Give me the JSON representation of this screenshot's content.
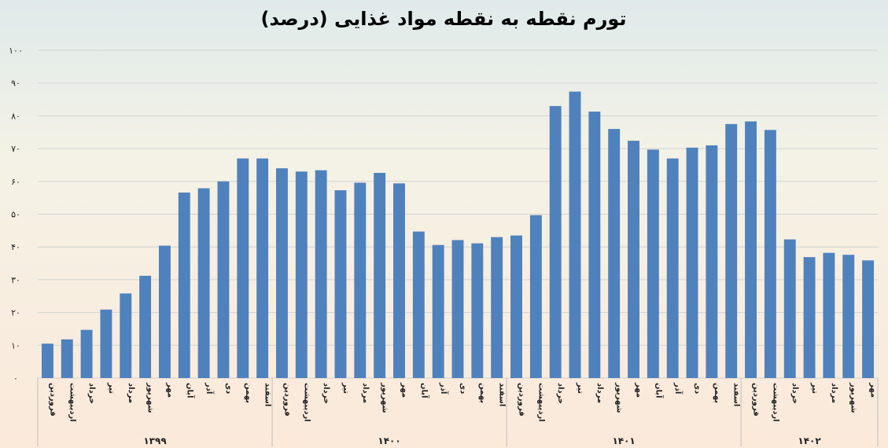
{
  "chart_data": {
    "type": "bar",
    "title": "تورم نقطه به نقطه مواد غذایی (درصد)",
    "xlabel": "",
    "ylabel": "",
    "ylim": [
      0,
      100
    ],
    "yticks": [
      0,
      10,
      20,
      30,
      40,
      50,
      60,
      70,
      80,
      90,
      100
    ],
    "ytick_labels": [
      "۰",
      "۱۰",
      "۲۰",
      "۳۰",
      "۴۰",
      "۵۰",
      "۶۰",
      "۷۰",
      "۸۰",
      "۹۰",
      "۱۰۰"
    ],
    "grid": true,
    "bar_color": "#4f81bd",
    "groups": [
      {
        "year": "۱۳۹۹",
        "categories": [
          "فروردین",
          "اردیبهشت",
          "خرداد",
          "تیر",
          "مرداد",
          "شهریور",
          "مهر",
          "آبان",
          "آذر",
          "دی",
          "بهمن",
          "اسفند"
        ],
        "values": [
          10.5,
          11.8,
          14.7,
          20.9,
          25.8,
          31.2,
          40.4,
          56.6,
          57.9,
          60.0,
          67.0,
          67.0
        ]
      },
      {
        "year": "۱۴۰۰",
        "categories": [
          "فروردین",
          "اردیبهشت",
          "خرداد",
          "تیر",
          "مرداد",
          "شهریور",
          "مهر",
          "آبان",
          "آذر",
          "دی",
          "بهمن",
          "اسفند"
        ],
        "values": [
          64.0,
          63.0,
          63.4,
          57.3,
          59.6,
          62.6,
          59.4,
          44.7,
          40.6,
          42.1,
          41.1,
          43.0
        ]
      },
      {
        "year": "۱۴۰۱",
        "categories": [
          "فروردین",
          "اردیبهشت",
          "خرداد",
          "تیر",
          "مرداد",
          "شهریور",
          "مهر",
          "آبان",
          "آذر",
          "دی",
          "بهمن",
          "اسفند"
        ],
        "values": [
          43.5,
          49.7,
          83.0,
          87.4,
          81.3,
          76.0,
          72.4,
          69.7,
          67.0,
          70.3,
          71.0,
          77.5
        ]
      },
      {
        "year": "۱۴۰۲",
        "categories": [
          "فروردین",
          "اردیبهشت",
          "خرداد",
          "تیر",
          "مرداد",
          "شهریور",
          "مهر"
        ],
        "values": [
          78.3,
          75.7,
          42.3,
          36.9,
          38.2,
          37.6,
          35.9
        ]
      }
    ]
  }
}
